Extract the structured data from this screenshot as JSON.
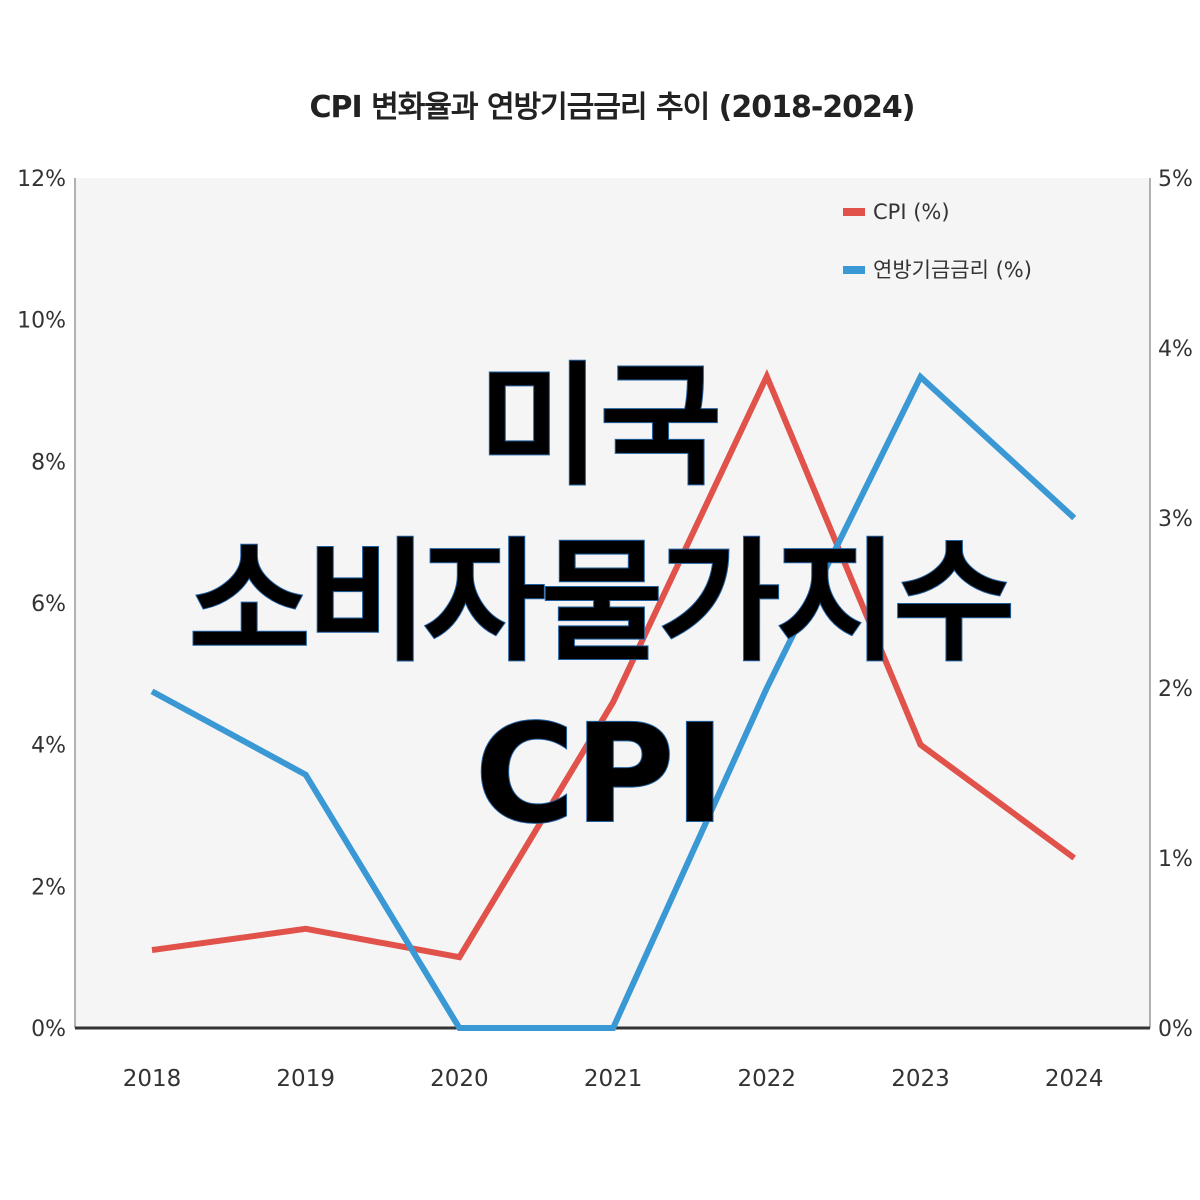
{
  "chart_data": {
    "type": "line",
    "title": "CPI 변화율과 연방기금금리 추이 (2018-2024)",
    "categories": [
      "2018",
      "2019",
      "2020",
      "2021",
      "2022",
      "2023",
      "2024"
    ],
    "left_axis": {
      "ticks": [
        "0%",
        "2%",
        "4%",
        "6%",
        "8%",
        "10%",
        "12%"
      ],
      "ylim": [
        0,
        12
      ]
    },
    "right_axis": {
      "ticks": [
        "0%",
        "1%",
        "2%",
        "3%",
        "4%",
        "5%"
      ],
      "ylim": [
        0,
        5
      ]
    },
    "series": [
      {
        "name": "CPI (%)",
        "axis": "left",
        "color": "#e0524a",
        "values": [
          1.1,
          1.4,
          1.0,
          4.6,
          9.2,
          4.0,
          2.4
        ]
      },
      {
        "name": "연방기금금리 (%)",
        "axis": "right",
        "color": "#3a98d4",
        "values": [
          1.98,
          1.49,
          0.0,
          0.0,
          2.0,
          3.83,
          3.0
        ]
      }
    ],
    "legend_position": "top-right",
    "grid": false
  },
  "overlay": {
    "line1": "미국",
    "line2": "소비자물가지수",
    "line3": "CPI"
  }
}
